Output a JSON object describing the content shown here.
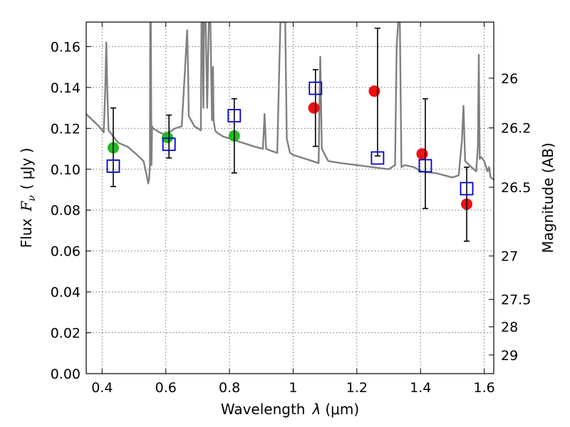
{
  "chart_data": {
    "type": "scatter",
    "title": "",
    "xlabel": "Wavelength  λ (μm)",
    "ylabel": "Flux  F_ν  ( μJy )",
    "ylabel_parts": {
      "prefix": "Flux",
      "symbol": "F",
      "subscript": "ν",
      "units": "( μJy )"
    },
    "xlabel_parts": {
      "prefix": "Wavelength",
      "symbol": "λ",
      "units": "(μm)"
    },
    "y2label": "Magnitude (AB)",
    "xlim": [
      0.35,
      1.63
    ],
    "ylim": [
      0.0,
      0.172
    ],
    "grid": true,
    "x_ticks": [
      0.4,
      0.6,
      0.8,
      1.0,
      1.2,
      1.4,
      1.6
    ],
    "x_tick_labels": [
      "0.4",
      "0.6",
      "0.8",
      "1",
      "1.2",
      "1.4",
      "1.6"
    ],
    "y_ticks": [
      0.0,
      0.02,
      0.04,
      0.06,
      0.08,
      0.1,
      0.12,
      0.14,
      0.16
    ],
    "y_tick_labels": [
      "0.00",
      "0.02",
      "0.04",
      "0.06",
      "0.08",
      "0.10",
      "0.12",
      "0.14",
      "0.16"
    ],
    "y2_ticks": [
      26,
      26.2,
      26.5,
      27,
      27.5,
      28,
      29
    ],
    "y2_tick_labels": [
      "26",
      "26.2",
      "26.5",
      "27",
      "27.5",
      "28",
      "29"
    ],
    "series": [
      {
        "kind": "spectrum",
        "color": "#808080",
        "x": [
          0.35,
          0.37,
          0.39,
          0.405,
          0.41,
          0.413,
          0.416,
          0.42,
          0.45,
          0.48,
          0.51,
          0.53,
          0.54,
          0.545,
          0.548,
          0.55,
          0.551,
          0.553,
          0.555,
          0.557,
          0.56,
          0.58,
          0.6,
          0.63,
          0.65,
          0.66,
          0.667,
          0.67,
          0.672,
          0.69,
          0.71,
          0.712,
          0.715,
          0.718,
          0.72,
          0.725,
          0.73,
          0.735,
          0.74,
          0.745,
          0.748,
          0.75,
          0.755,
          0.76,
          0.78,
          0.8,
          0.82,
          0.84,
          0.86,
          0.88,
          0.905,
          0.91,
          0.915,
          0.93,
          0.95,
          0.958,
          0.96,
          0.965,
          0.97,
          0.975,
          0.98,
          0.99,
          1.0,
          1.02,
          1.04,
          1.06,
          1.08,
          1.085,
          1.09,
          1.11,
          1.15,
          1.2,
          1.25,
          1.3,
          1.32,
          1.325,
          1.33,
          1.335,
          1.34,
          1.35,
          1.38,
          1.4,
          1.45,
          1.5,
          1.52,
          1.53,
          1.535,
          1.54,
          1.56,
          1.575,
          1.58,
          1.583,
          1.586,
          1.59,
          1.6,
          1.61,
          1.615,
          1.62,
          1.63
        ],
        "y": [
          0.127,
          0.124,
          0.121,
          0.118,
          0.14,
          0.162,
          0.14,
          0.119,
          0.113,
          0.111,
          0.107,
          0.104,
          0.097,
          0.093,
          0.096,
          0.102,
          0.172,
          0.172,
          0.102,
          0.121,
          0.12,
          0.118,
          0.117,
          0.12,
          0.121,
          0.148,
          0.168,
          0.148,
          0.126,
          0.121,
          0.119,
          0.172,
          0.172,
          0.13,
          0.172,
          0.172,
          0.13,
          0.172,
          0.172,
          0.124,
          0.15,
          0.124,
          0.119,
          0.118,
          0.116,
          0.115,
          0.114,
          0.113,
          0.112,
          0.111,
          0.11,
          0.127,
          0.11,
          0.109,
          0.108,
          0.16,
          0.172,
          0.172,
          0.172,
          0.172,
          0.115,
          0.108,
          0.107,
          0.106,
          0.105,
          0.104,
          0.103,
          0.155,
          0.11,
          0.104,
          0.103,
          0.102,
          0.101,
          0.1,
          0.102,
          0.16,
          0.172,
          0.172,
          0.101,
          0.102,
          0.101,
          0.099,
          0.098,
          0.096,
          0.097,
          0.114,
          0.131,
          0.104,
          0.101,
          0.099,
          0.111,
          0.156,
          0.105,
          0.106,
          0.104,
          0.099,
          0.101,
          0.096,
          0.095
        ]
      },
      {
        "kind": "filled-circle",
        "color": "#22bb22",
        "x": [
          0.435,
          0.605,
          0.815
        ],
        "y": [
          0.1105,
          0.1155,
          0.1163
        ]
      },
      {
        "kind": "filled-circle",
        "color": "#ee1111",
        "x": [
          1.065,
          1.255,
          1.405,
          1.545
        ],
        "y": [
          0.13,
          0.1382,
          0.1075,
          0.0829
        ]
      },
      {
        "kind": "open-square-errorbar",
        "color": "#0000cc",
        "errorbar_color": "#000000",
        "x": [
          0.435,
          0.61,
          0.815,
          1.07,
          1.265,
          1.415,
          1.545
        ],
        "y": [
          0.1015,
          0.1122,
          0.1262,
          0.1396,
          0.1055,
          0.1017,
          0.0905
        ],
        "ylow": [
          0.0915,
          0.1055,
          0.0982,
          0.1112,
          0.1065,
          0.0808,
          0.0648
        ],
        "yhigh": [
          0.13,
          0.1265,
          0.1345,
          0.1487,
          0.169,
          0.1345,
          0.101
        ]
      }
    ]
  }
}
